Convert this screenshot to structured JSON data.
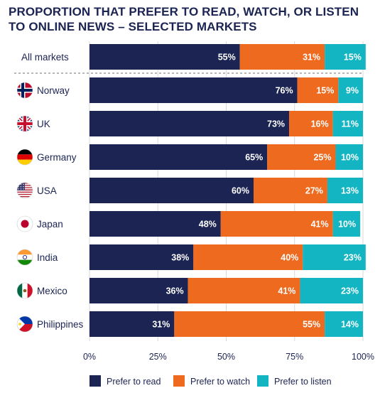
{
  "title": "PROPORTION THAT PREFER TO READ, WATCH, OR LISTEN TO ONLINE NEWS – SELECTED MARKETS",
  "colors": {
    "read": "#1b2452",
    "watch": "#ee6a1f",
    "listen": "#12b5c1",
    "text": "#1b2452",
    "grid": "#d9d9d9"
  },
  "chart_data": {
    "type": "bar",
    "orientation": "horizontal",
    "stacked": true,
    "categories": [
      "All markets",
      "Norway",
      "UK",
      "Germany",
      "USA",
      "Japan",
      "India",
      "Mexico",
      "Philippines"
    ],
    "flags": [
      "",
      "norway-flag-icon",
      "uk-flag-icon",
      "germany-flag-icon",
      "usa-flag-icon",
      "japan-flag-icon",
      "india-flag-icon",
      "mexico-flag-icon",
      "philippines-flag-icon"
    ],
    "series": [
      {
        "name": "Prefer to read",
        "values": [
          55,
          76,
          73,
          65,
          60,
          48,
          38,
          36,
          31
        ]
      },
      {
        "name": "Prefer to watch",
        "values": [
          31,
          15,
          16,
          25,
          27,
          41,
          40,
          41,
          55
        ]
      },
      {
        "name": "Prefer to listen",
        "values": [
          15,
          9,
          11,
          10,
          13,
          10,
          23,
          23,
          14
        ]
      }
    ],
    "value_format": "%",
    "xlim": [
      0,
      100
    ],
    "xticks": [
      "0%",
      "25%",
      "50%",
      "75%",
      "100%"
    ],
    "legend_position": "bottom",
    "grid": true
  }
}
